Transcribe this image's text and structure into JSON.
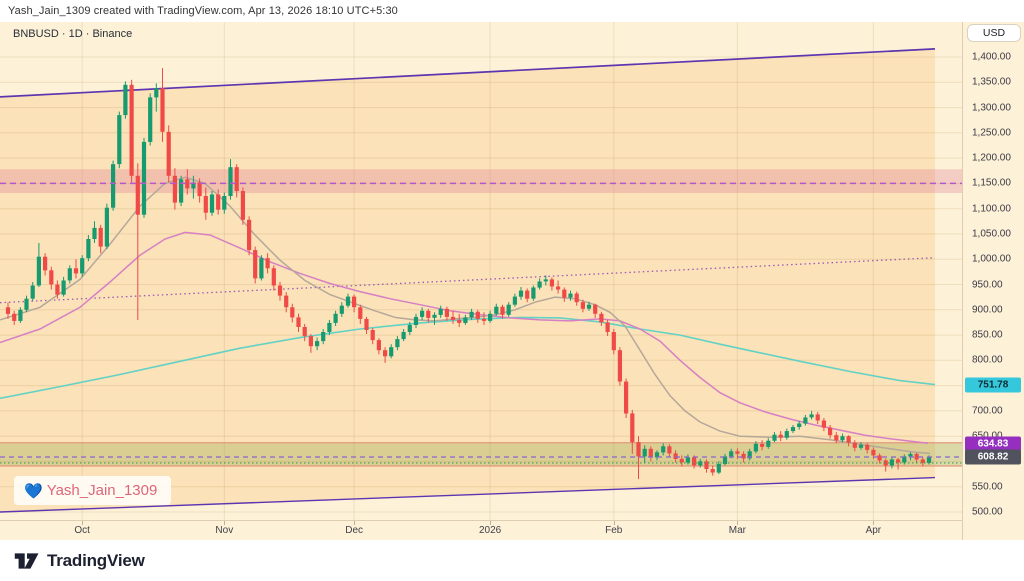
{
  "topbar": {
    "attribution": "Yash_Jain_1309 created with TradingView.com, Apr 13, 2026 18:10 UTC+5:30"
  },
  "legend": {
    "text": "BNBUSD · 1D · Binance"
  },
  "price_axis": {
    "currency_button": "USD",
    "labels": [
      [
        1400,
        "1,400.00"
      ],
      [
        1350,
        "1,350.00"
      ],
      [
        1300,
        "1,300.00"
      ],
      [
        1250,
        "1,250.00"
      ],
      [
        1200,
        "1,200.00"
      ],
      [
        1150,
        "1,150.00"
      ],
      [
        1100,
        "1,100.00"
      ],
      [
        1050,
        "1,050.00"
      ],
      [
        1000,
        "1,000.00"
      ],
      [
        950,
        "950.00"
      ],
      [
        900,
        "900.00"
      ],
      [
        850,
        "850.00"
      ],
      [
        800,
        "800.00"
      ],
      [
        750,
        "750.00"
      ],
      [
        700,
        "700.00"
      ],
      [
        650,
        "650.00"
      ],
      [
        600,
        "600.00"
      ],
      [
        550,
        "550.00"
      ],
      [
        500,
        "500.00"
      ]
    ],
    "badges": [
      {
        "text": "751.78",
        "price": 751.78,
        "bg": "#35c8dc",
        "fg": "#0c2b30"
      },
      {
        "text": "634.83",
        "price": 634.83,
        "bg": "#962fbf",
        "fg": "#ffffff"
      },
      {
        "text": "608.82",
        "price": 608.82,
        "bg": "#50535e",
        "fg": "#ffffff"
      }
    ]
  },
  "watermark": {
    "icon": "💙",
    "text": "Yash_Jain_1309"
  },
  "footer": {
    "brand": "TradingView"
  },
  "chart_data": {
    "type": "candlestick",
    "symbol": "BNBUSD",
    "interval": "1D",
    "exchange": "Binance",
    "currency": "USD",
    "ylim": [
      500,
      1400
    ],
    "price_step": 50,
    "grid": true,
    "month_ticks": [
      {
        "label": "Oct",
        "i": 12
      },
      {
        "label": "Nov",
        "i": 35
      },
      {
        "label": "Dec",
        "i": 56
      },
      {
        "label": "2026",
        "i": 78
      },
      {
        "label": "Feb",
        "i": 98
      },
      {
        "label": "Mar",
        "i": 118
      },
      {
        "label": "Apr",
        "i": 140
      }
    ],
    "levels": {
      "resistance_zone": {
        "top": 1178,
        "bottom": 1131,
        "mid_dashed": 1150
      },
      "support_zone": {
        "top": 637,
        "bottom": 591,
        "dotted": 597
      },
      "line_label": 634.83,
      "last_price": 608.82,
      "cyan_ma_end": 751.78
    },
    "trend_channel": {
      "upper": [
        [
          0,
          1321
        ],
        [
          935,
          1416
        ]
      ],
      "lower": [
        [
          0,
          500
        ],
        [
          935,
          568
        ]
      ],
      "mid_dotted": [
        [
          0,
          914
        ],
        [
          935,
          1003
        ]
      ]
    },
    "overlays": {
      "cyan_ma": [
        [
          0,
          725
        ],
        [
          60,
          748
        ],
        [
          120,
          772
        ],
        [
          180,
          798
        ],
        [
          240,
          824
        ],
        [
          300,
          845
        ],
        [
          360,
          862
        ],
        [
          420,
          874
        ],
        [
          470,
          881
        ],
        [
          520,
          885
        ],
        [
          560,
          884
        ],
        [
          600,
          876
        ],
        [
          640,
          862
        ],
        [
          680,
          850
        ],
        [
          720,
          832
        ],
        [
          760,
          815
        ],
        [
          800,
          798
        ],
        [
          850,
          778
        ],
        [
          900,
          760
        ],
        [
          935,
          752
        ]
      ],
      "magenta_ma": [
        [
          0,
          835
        ],
        [
          40,
          862
        ],
        [
          80,
          905
        ],
        [
          110,
          955
        ],
        [
          140,
          1008
        ],
        [
          165,
          1040
        ],
        [
          185,
          1053
        ],
        [
          210,
          1048
        ],
        [
          240,
          1022
        ],
        [
          270,
          995
        ],
        [
          300,
          972
        ],
        [
          330,
          952
        ],
        [
          360,
          936
        ],
        [
          390,
          922
        ],
        [
          420,
          910
        ],
        [
          450,
          898
        ],
        [
          480,
          890
        ],
        [
          510,
          884
        ],
        [
          540,
          880
        ],
        [
          570,
          878
        ],
        [
          600,
          882
        ],
        [
          620,
          878
        ],
        [
          640,
          862
        ],
        [
          660,
          838
        ],
        [
          680,
          800
        ],
        [
          700,
          766
        ],
        [
          720,
          736
        ],
        [
          740,
          716
        ],
        [
          765,
          698
        ],
        [
          790,
          684
        ],
        [
          815,
          672
        ],
        [
          840,
          662
        ],
        [
          865,
          652
        ],
        [
          890,
          645
        ],
        [
          915,
          639
        ],
        [
          928,
          636
        ]
      ],
      "gray_ma": [
        [
          0,
          880
        ],
        [
          40,
          905
        ],
        [
          80,
          960
        ],
        [
          110,
          1030
        ],
        [
          140,
          1105
        ],
        [
          165,
          1150
        ],
        [
          185,
          1162
        ],
        [
          205,
          1150
        ],
        [
          230,
          1105
        ],
        [
          255,
          1048
        ],
        [
          280,
          998
        ],
        [
          305,
          958
        ],
        [
          330,
          930
        ],
        [
          355,
          912
        ],
        [
          375,
          898
        ],
        [
          395,
          885
        ],
        [
          415,
          880
        ],
        [
          435,
          878
        ],
        [
          455,
          882
        ],
        [
          475,
          885
        ],
        [
          495,
          890
        ],
        [
          515,
          900
        ],
        [
          535,
          915
        ],
        [
          555,
          925
        ],
        [
          575,
          922
        ],
        [
          595,
          910
        ],
        [
          610,
          895
        ],
        [
          625,
          868
        ],
        [
          640,
          820
        ],
        [
          655,
          772
        ],
        [
          670,
          730
        ],
        [
          685,
          700
        ],
        [
          700,
          678
        ],
        [
          720,
          660
        ],
        [
          740,
          650
        ],
        [
          770,
          648
        ],
        [
          800,
          650
        ],
        [
          830,
          643
        ],
        [
          860,
          634
        ],
        [
          890,
          625
        ],
        [
          915,
          618
        ],
        [
          930,
          616
        ]
      ]
    },
    "candles": [
      [
        905,
        915,
        882,
        892
      ],
      [
        892,
        898,
        870,
        878
      ],
      [
        878,
        905,
        874,
        900
      ],
      [
        900,
        928,
        895,
        922
      ],
      [
        922,
        955,
        918,
        948
      ],
      [
        948,
        1032,
        945,
        1005
      ],
      [
        1005,
        1012,
        968,
        978
      ],
      [
        978,
        985,
        940,
        950
      ],
      [
        950,
        958,
        922,
        930
      ],
      [
        930,
        965,
        926,
        958
      ],
      [
        958,
        988,
        952,
        982
      ],
      [
        982,
        1000,
        962,
        972
      ],
      [
        972,
        1008,
        965,
        1002
      ],
      [
        1002,
        1048,
        996,
        1040
      ],
      [
        1040,
        1075,
        1032,
        1062
      ],
      [
        1062,
        1068,
        1012,
        1025
      ],
      [
        1025,
        1110,
        1020,
        1102
      ],
      [
        1102,
        1195,
        1096,
        1188
      ],
      [
        1188,
        1292,
        1180,
        1285
      ],
      [
        1285,
        1352,
        1278,
        1345
      ],
      [
        1345,
        1355,
        1152,
        1165
      ],
      [
        1165,
        1190,
        880,
        1088
      ],
      [
        1088,
        1240,
        1082,
        1232
      ],
      [
        1232,
        1328,
        1225,
        1320
      ],
      [
        1320,
        1348,
        1292,
        1338
      ],
      [
        1338,
        1378,
        1232,
        1252
      ],
      [
        1252,
        1265,
        1152,
        1165
      ],
      [
        1165,
        1180,
        1098,
        1112
      ],
      [
        1112,
        1165,
        1105,
        1158
      ],
      [
        1158,
        1178,
        1128,
        1140
      ],
      [
        1140,
        1165,
        1120,
        1152
      ],
      [
        1152,
        1160,
        1112,
        1125
      ],
      [
        1125,
        1142,
        1078,
        1092
      ],
      [
        1092,
        1135,
        1086,
        1128
      ],
      [
        1128,
        1138,
        1088,
        1098
      ],
      [
        1098,
        1132,
        1090,
        1125
      ],
      [
        1125,
        1198,
        1118,
        1182
      ],
      [
        1182,
        1188,
        1122,
        1135
      ],
      [
        1135,
        1142,
        1068,
        1078
      ],
      [
        1078,
        1085,
        1008,
        1018
      ],
      [
        1018,
        1025,
        952,
        962
      ],
      [
        962,
        1008,
        958,
        1002
      ],
      [
        1002,
        1012,
        972,
        982
      ],
      [
        982,
        988,
        938,
        948
      ],
      [
        948,
        955,
        918,
        928
      ],
      [
        928,
        935,
        895,
        905
      ],
      [
        905,
        912,
        875,
        885
      ],
      [
        885,
        892,
        856,
        866
      ],
      [
        866,
        872,
        838,
        848
      ],
      [
        848,
        852,
        815,
        828
      ],
      [
        828,
        845,
        820,
        838
      ],
      [
        838,
        862,
        832,
        856
      ],
      [
        856,
        880,
        850,
        874
      ],
      [
        874,
        898,
        868,
        892
      ],
      [
        892,
        915,
        886,
        908
      ],
      [
        908,
        932,
        904,
        926
      ],
      [
        926,
        930,
        895,
        905
      ],
      [
        905,
        910,
        872,
        882
      ],
      [
        882,
        886,
        852,
        860
      ],
      [
        860,
        864,
        832,
        840
      ],
      [
        840,
        844,
        812,
        820
      ],
      [
        820,
        826,
        795,
        808
      ],
      [
        808,
        832,
        804,
        826
      ],
      [
        826,
        848,
        820,
        842
      ],
      [
        842,
        862,
        838,
        856
      ],
      [
        856,
        876,
        850,
        870
      ],
      [
        870,
        892,
        864,
        886
      ],
      [
        886,
        905,
        880,
        898
      ],
      [
        898,
        902,
        875,
        884
      ],
      [
        884,
        895,
        870,
        890
      ],
      [
        890,
        908,
        884,
        902
      ],
      [
        902,
        906,
        878,
        886
      ],
      [
        886,
        898,
        872,
        880
      ],
      [
        880,
        892,
        866,
        874
      ],
      [
        874,
        890,
        870,
        885
      ],
      [
        885,
        902,
        880,
        896
      ],
      [
        896,
        900,
        874,
        882
      ],
      [
        882,
        895,
        870,
        878
      ],
      [
        878,
        898,
        874,
        892
      ],
      [
        892,
        912,
        888,
        906
      ],
      [
        906,
        910,
        882,
        890
      ],
      [
        890,
        915,
        886,
        910
      ],
      [
        910,
        932,
        906,
        926
      ],
      [
        926,
        945,
        920,
        938
      ],
      [
        938,
        942,
        915,
        922
      ],
      [
        922,
        948,
        918,
        944
      ],
      [
        944,
        962,
        940,
        956
      ],
      [
        956,
        968,
        948,
        960
      ],
      [
        960,
        964,
        938,
        946
      ],
      [
        946,
        958,
        932,
        940
      ],
      [
        940,
        944,
        916,
        924
      ],
      [
        924,
        938,
        918,
        932
      ],
      [
        932,
        936,
        908,
        915
      ],
      [
        915,
        920,
        895,
        902
      ],
      [
        902,
        916,
        898,
        910
      ],
      [
        910,
        912,
        884,
        892
      ],
      [
        892,
        896,
        868,
        875
      ],
      [
        875,
        880,
        848,
        856
      ],
      [
        856,
        862,
        812,
        820
      ],
      [
        820,
        826,
        750,
        758
      ],
      [
        758,
        764,
        686,
        695
      ],
      [
        695,
        702,
        615,
        638
      ],
      [
        638,
        650,
        565,
        610
      ],
      [
        610,
        632,
        598,
        625
      ],
      [
        625,
        630,
        600,
        608
      ],
      [
        608,
        622,
        602,
        618
      ],
      [
        618,
        636,
        612,
        630
      ],
      [
        630,
        634,
        608,
        616
      ],
      [
        616,
        622,
        598,
        605
      ],
      [
        605,
        612,
        590,
        598
      ],
      [
        598,
        614,
        594,
        608
      ],
      [
        608,
        612,
        586,
        592
      ],
      [
        592,
        605,
        588,
        600
      ],
      [
        600,
        604,
        578,
        585
      ],
      [
        585,
        592,
        572,
        578
      ],
      [
        578,
        600,
        575,
        595
      ],
      [
        595,
        615,
        592,
        610
      ],
      [
        610,
        625,
        606,
        620
      ],
      [
        620,
        626,
        605,
        615
      ],
      [
        615,
        620,
        598,
        606
      ],
      [
        606,
        625,
        602,
        620
      ],
      [
        620,
        640,
        616,
        635
      ],
      [
        635,
        642,
        622,
        629
      ],
      [
        629,
        646,
        625,
        641
      ],
      [
        641,
        658,
        638,
        653
      ],
      [
        653,
        660,
        640,
        647
      ],
      [
        647,
        665,
        643,
        660
      ],
      [
        660,
        672,
        656,
        668
      ],
      [
        668,
        680,
        663,
        675
      ],
      [
        675,
        692,
        671,
        687
      ],
      [
        687,
        700,
        683,
        693
      ],
      [
        693,
        698,
        674,
        681
      ],
      [
        681,
        686,
        660,
        667
      ],
      [
        667,
        672,
        645,
        652
      ],
      [
        652,
        658,
        636,
        642
      ],
      [
        642,
        655,
        638,
        650
      ],
      [
        650,
        652,
        630,
        637
      ],
      [
        637,
        642,
        620,
        627
      ],
      [
        627,
        638,
        623,
        633
      ],
      [
        633,
        636,
        616,
        623
      ],
      [
        623,
        628,
        605,
        612
      ],
      [
        612,
        616,
        596,
        602
      ],
      [
        602,
        606,
        580,
        592
      ],
      [
        592,
        608,
        586,
        604
      ],
      [
        604,
        607,
        584,
        598
      ],
      [
        598,
        614,
        594,
        610
      ],
      [
        610,
        618,
        602,
        615
      ],
      [
        615,
        617,
        598,
        604
      ],
      [
        604,
        608,
        590,
        597
      ],
      [
        597,
        612,
        594,
        608.82
      ]
    ],
    "colors": {
      "up": "#179a6f",
      "down": "#ef4a47",
      "background": "#fdf2d7",
      "channel_fill": "rgba(246,153,47,0.18)",
      "channel_line": "#5e35b1",
      "channel_dotted": "#9b59b6",
      "resistance_fill": "rgba(214,96,138,0.25)",
      "resistance_dashed": "#b558c8",
      "support_fill": "rgba(141,158,58,0.30)",
      "support_border": "#e2987e",
      "support_dotted": "#3c9e4f",
      "last_price_line": "#8a63d2",
      "cyan_ma": "#62d2c5",
      "magenta_ma": "#d77fc4",
      "gray_ma": "#b5a79a",
      "grid": "rgba(187,148,94,0.22)"
    }
  }
}
